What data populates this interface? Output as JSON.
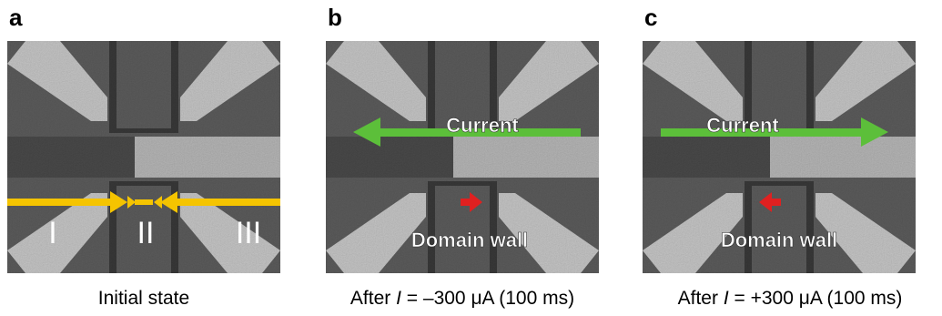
{
  "panels": [
    {
      "label": "a",
      "caption": {
        "text": "Initial state"
      },
      "regions": [
        "I",
        "II",
        "III"
      ]
    },
    {
      "label": "b",
      "caption": {
        "prefix": "After",
        "variable": "I",
        "rest": "= –300 μA (100 ms)"
      },
      "current": "Current",
      "domain_wall": "Domain wall"
    },
    {
      "label": "c",
      "caption": {
        "prefix": "After",
        "variable": "I",
        "rest": "= +300 μA (100 ms)"
      },
      "current": "Current",
      "domain_wall": "Domain wall"
    }
  ]
}
